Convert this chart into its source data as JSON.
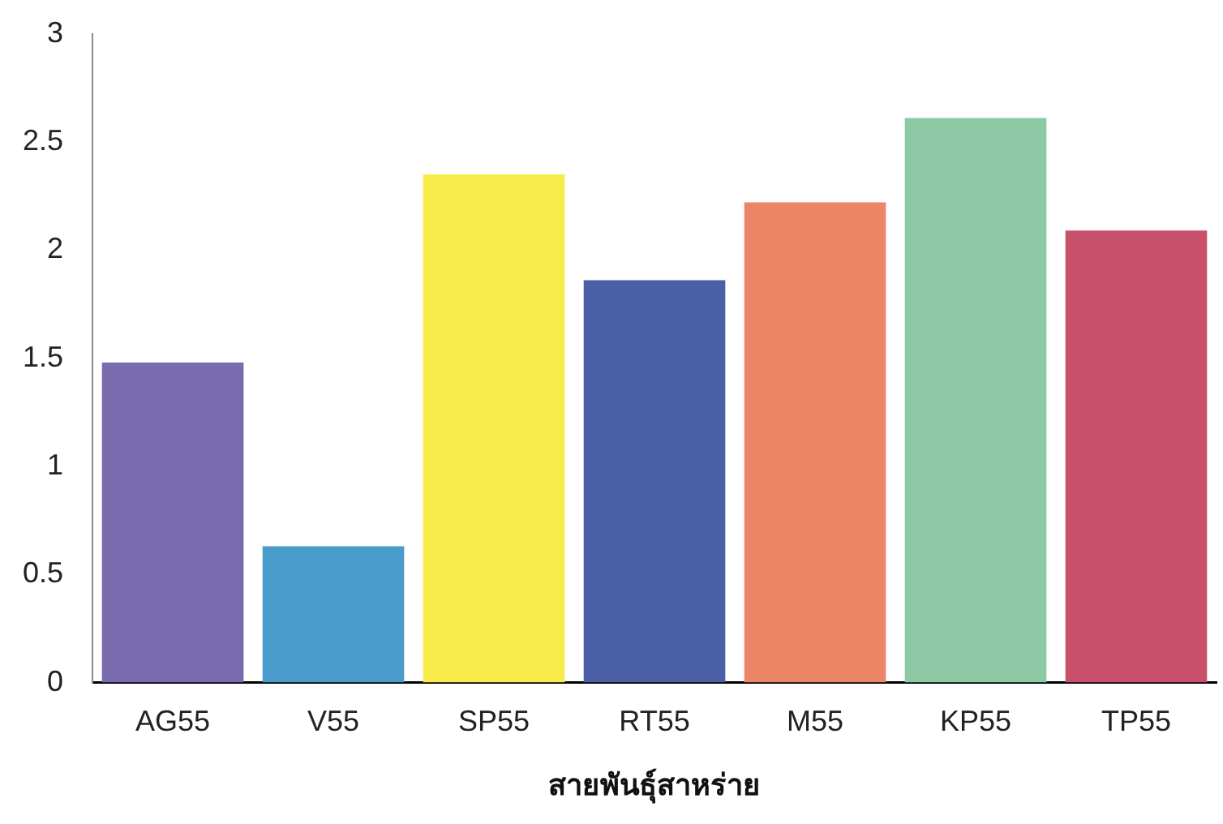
{
  "chart_data": {
    "type": "bar",
    "xlabel": "สายพันธุ์สาหร่าย",
    "categories": [
      "AG55",
      "V55",
      "SP55",
      "RT55",
      "M55",
      "KP55",
      "TP55"
    ],
    "values": [
      1.48,
      0.63,
      2.35,
      1.86,
      2.22,
      2.61,
      2.09
    ],
    "colors": [
      "#7a6aae",
      "#4a9ccc",
      "#f7ec4a",
      "#4a5fa6",
      "#ec8466",
      "#8cc9a4",
      "#c8506a"
    ],
    "ylim": [
      0,
      3
    ],
    "yticks": [
      0,
      0.5,
      1,
      1.5,
      2,
      2.5,
      3
    ],
    "grid": false,
    "legend": false
  }
}
